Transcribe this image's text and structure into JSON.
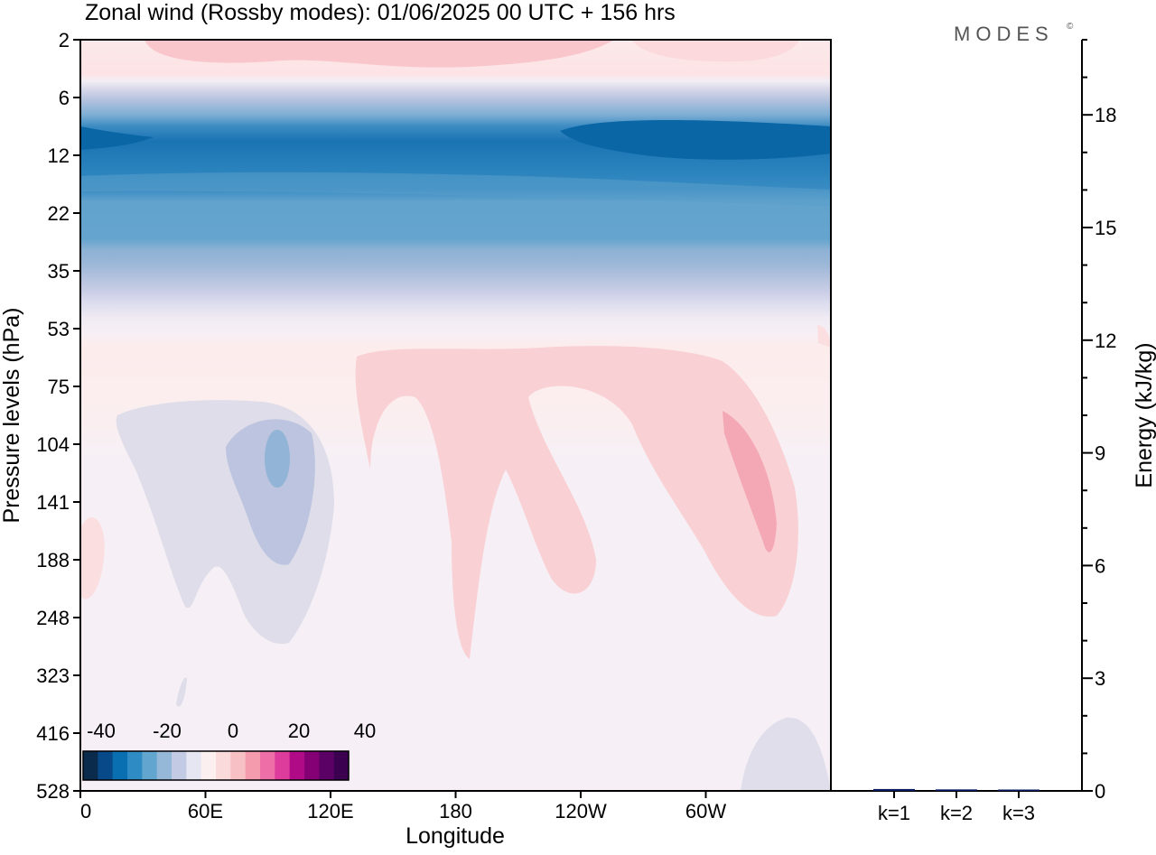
{
  "chart_data": {
    "type": "heatmap",
    "title": "Zonal wind (Rossby modes):  01/06/2025  00 UTC  + 156 hrs",
    "logo": "MODES",
    "logo_mark": "©",
    "xlabel": "Longitude",
    "ylabel": "Pressure levels (hPa)",
    "x_ticks": [
      "0",
      "60E",
      "120E",
      "180",
      "120W",
      "60W"
    ],
    "y_ticks": [
      "2",
      "6",
      "12",
      "22",
      "35",
      "53",
      "75",
      "104",
      "141",
      "188",
      "248",
      "323",
      "416",
      "528"
    ],
    "colorbar": {
      "tick_labels": [
        "-40",
        "-20",
        "0",
        "20",
        "40"
      ],
      "colors": [
        "#0b2b4c",
        "#08498a",
        "#0a6fb0",
        "#2e8bc4",
        "#62a5cf",
        "#95b8d8",
        "#c3cae4",
        "#e6e6f2",
        "#fcefef",
        "#fbdadb",
        "#f7c0c4",
        "#f49bae",
        "#ee6ea8",
        "#dd3c9c",
        "#b00a86",
        "#850074",
        "#5b0065",
        "#3b004f"
      ]
    },
    "energy_panel": {
      "ylabel": "Energy (kJ/kg)",
      "ylim": [
        0,
        20
      ],
      "y_ticks": [
        "0",
        "3",
        "6",
        "9",
        "12",
        "15",
        "18"
      ],
      "categories": [
        "k=1",
        "k=2",
        "k=3"
      ],
      "values": [
        0.05,
        0.04,
        0.02
      ],
      "bar_color": "#0a1a66"
    }
  }
}
